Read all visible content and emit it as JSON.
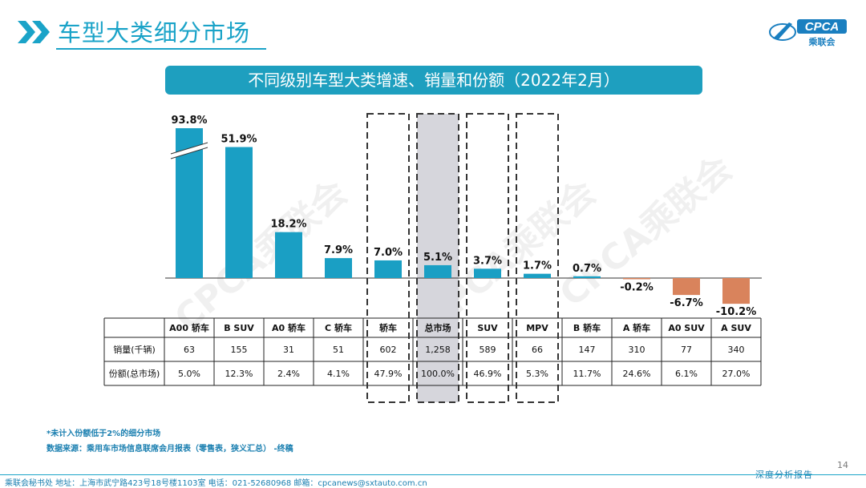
{
  "page": {
    "title": "车型大类细分市场",
    "logo_text": "CPCA",
    "logo_subtext": "乘联会",
    "watermark": "CPCA乘联会",
    "page_number": "14"
  },
  "footnotes": {
    "note": "*未计入份额低于2%的细分市场",
    "source": "数据来源：乘用车市场信息联席会月报表（零售表，狭义汇总）  -终稿"
  },
  "footer": {
    "contact": "乘联会秘书处   地址：上海市武宁路423号18号楼1103室   电话：021-52680968    邮箱：cpcanews@sxtauto.com.cn",
    "tagline": "深度分析报告"
  },
  "colors": {
    "positive": "#1a9fc4",
    "negative": "#d9835c",
    "highlight_bg": "#d6d6dc",
    "banner": "#1e9fbf"
  },
  "chart_data": {
    "type": "bar",
    "title": "不同级别车型大类增速、销量和份额（2022年2月）",
    "categories": [
      "A00 轿车",
      "B SUV",
      "A0 轿车",
      "C 轿车",
      "轿车",
      "总市场",
      "SUV",
      "MPV",
      "B 轿车",
      "A 轿车",
      "A0 SUV",
      "A SUV"
    ],
    "values": [
      93.8,
      51.9,
      18.2,
      7.9,
      7.0,
      5.1,
      3.7,
      1.7,
      0.7,
      -0.2,
      -6.7,
      -10.2
    ],
    "value_labels": [
      "93.8%",
      "51.9%",
      "18.2%",
      "7.9%",
      "7.0%",
      "5.1%",
      "3.7%",
      "1.7%",
      "0.7%",
      "-0.2%",
      "-6.7%",
      "-10.2%"
    ],
    "axis_break": "A00 轿车",
    "highlighted": [
      "轿车",
      "总市场",
      "SUV",
      "MPV"
    ],
    "shaded": [
      "总市场"
    ],
    "table": {
      "rows": [
        {
          "label": "销量(千辆)",
          "values": [
            "63",
            "155",
            "31",
            "51",
            "602",
            "1,258",
            "589",
            "66",
            "147",
            "310",
            "77",
            "340"
          ]
        },
        {
          "label": "份额(总市场)",
          "values": [
            "5.0%",
            "12.3%",
            "2.4%",
            "4.1%",
            "47.9%",
            "100.0%",
            "46.9%",
            "5.3%",
            "11.7%",
            "24.6%",
            "6.1%",
            "27.0%"
          ]
        }
      ]
    }
  }
}
